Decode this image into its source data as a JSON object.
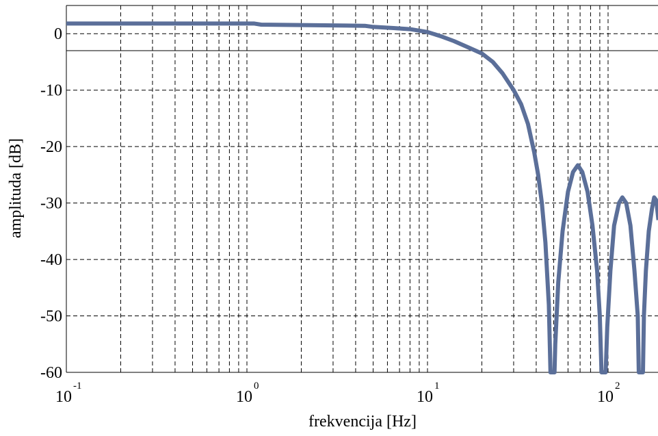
{
  "chart_data": {
    "type": "line",
    "title": "",
    "xlabel": "frekvencija [Hz]",
    "ylabel": "amplituda [dB]",
    "x_scale": "log",
    "xlim": [
      0.1,
      190
    ],
    "ylim": [
      -60,
      5
    ],
    "grid": true,
    "x_ticks": [
      {
        "value": 0.1,
        "base": "10",
        "exp": "-1"
      },
      {
        "value": 1,
        "base": "10",
        "exp": "0"
      },
      {
        "value": 10,
        "base": "10",
        "exp": "1"
      },
      {
        "value": 100,
        "base": "10",
        "exp": "2"
      }
    ],
    "y_ticks": [
      {
        "value": 0,
        "label": "0"
      },
      {
        "value": -10,
        "label": "-10"
      },
      {
        "value": -20,
        "label": "-20"
      },
      {
        "value": -30,
        "label": "-30"
      },
      {
        "value": -40,
        "label": "-40"
      },
      {
        "value": -50,
        "label": "-50"
      },
      {
        "value": -60,
        "label": "-60"
      }
    ],
    "reference_line": {
      "y": -3
    },
    "series": [
      {
        "color": "#5b6f99",
        "points": [
          [
            0.1,
            1.8
          ],
          [
            0.5,
            1.8
          ],
          [
            1.1,
            1.8
          ],
          [
            1.2,
            1.6
          ],
          [
            4.5,
            1.4
          ],
          [
            5,
            1.2
          ],
          [
            6.5,
            1.0
          ],
          [
            8,
            0.8
          ],
          [
            10,
            0.3
          ],
          [
            12,
            -0.5
          ],
          [
            14,
            -1.3
          ],
          [
            17,
            -2.5
          ],
          [
            20,
            -3.5
          ],
          [
            23,
            -5
          ],
          [
            26,
            -7
          ],
          [
            30,
            -10
          ],
          [
            33,
            -12.5
          ],
          [
            36,
            -16
          ],
          [
            39,
            -21
          ],
          [
            41,
            -25
          ],
          [
            43,
            -30
          ],
          [
            45,
            -37
          ],
          [
            47,
            -48
          ],
          [
            48,
            -60
          ],
          [
            50.5,
            -60
          ],
          [
            51,
            -55
          ],
          [
            53,
            -44
          ],
          [
            56,
            -35
          ],
          [
            60,
            -28
          ],
          [
            64,
            -24.5
          ],
          [
            68,
            -23.3
          ],
          [
            72,
            -24.5
          ],
          [
            77,
            -28
          ],
          [
            82,
            -34
          ],
          [
            87,
            -42
          ],
          [
            90,
            -50
          ],
          [
            92,
            -60
          ],
          [
            97,
            -60
          ],
          [
            99,
            -52
          ],
          [
            103,
            -42
          ],
          [
            108,
            -34
          ],
          [
            115,
            -30
          ],
          [
            120,
            -29
          ],
          [
            126,
            -30
          ],
          [
            133,
            -34
          ],
          [
            140,
            -42
          ],
          [
            146,
            -50
          ],
          [
            148,
            -60
          ],
          [
            156,
            -60
          ],
          [
            158,
            -50
          ],
          [
            162,
            -42
          ],
          [
            168,
            -35
          ],
          [
            175,
            -31
          ],
          [
            180,
            -29
          ],
          [
            185,
            -29.5
          ],
          [
            190,
            -33
          ]
        ]
      }
    ]
  }
}
